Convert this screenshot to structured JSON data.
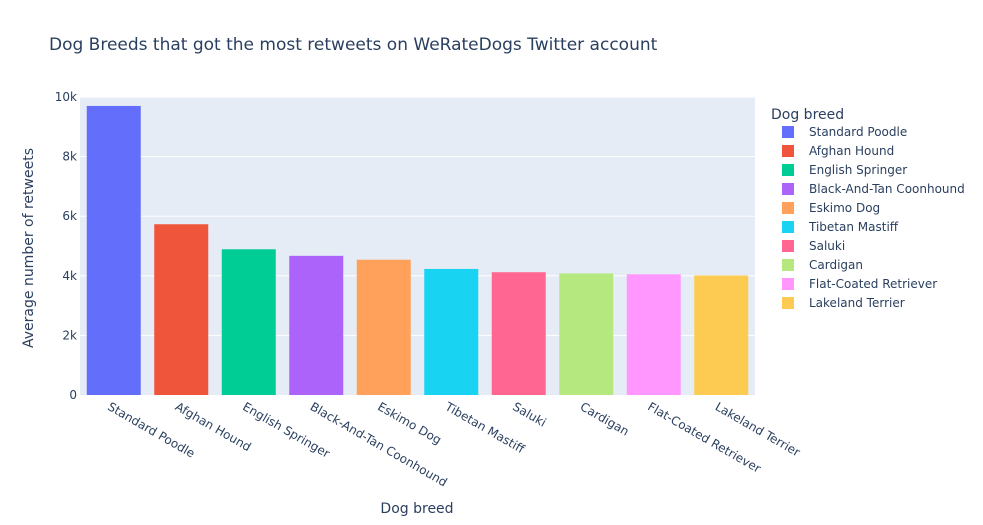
{
  "chart_data": {
    "type": "bar",
    "title": "Dog Breeds that got the most retweets on WeRateDogs Twitter account",
    "xlabel": "Dog breed",
    "ylabel": "Average number of retweets",
    "ylim": [
      0,
      10000
    ],
    "yticks": [
      0,
      2000,
      4000,
      6000,
      8000,
      10000
    ],
    "ytick_labels": [
      "0",
      "2k",
      "4k",
      "6k",
      "8k",
      "10k"
    ],
    "grid": true,
    "legend": {
      "title": "Dog breed",
      "position": "right"
    },
    "categories": [
      "Standard Poodle",
      "Afghan Hound",
      "English Springer",
      "Black-And-Tan Coonhound",
      "Eskimo Dog",
      "Tibetan Mastiff",
      "Saluki",
      "Cardigan",
      "Flat-Coated Retriever",
      "Lakeland Terrier"
    ],
    "values": [
      9700,
      5730,
      4890,
      4670,
      4540,
      4230,
      4120,
      4080,
      4050,
      4010
    ],
    "series": [
      {
        "name": "Standard Poodle",
        "color": "#636efa"
      },
      {
        "name": "Afghan Hound",
        "color": "#ef553b"
      },
      {
        "name": "English Springer",
        "color": "#00cc96"
      },
      {
        "name": "Black-And-Tan Coonhound",
        "color": "#ab63fa"
      },
      {
        "name": "Eskimo Dog",
        "color": "#ffa15a"
      },
      {
        "name": "Tibetan Mastiff",
        "color": "#19d3f3"
      },
      {
        "name": "Saluki",
        "color": "#ff6692"
      },
      {
        "name": "Cardigan",
        "color": "#b6e880"
      },
      {
        "name": "Flat-Coated Retriever",
        "color": "#ff97ff"
      },
      {
        "name": "Lakeland Terrier",
        "color": "#fecb52"
      }
    ],
    "plot_bg": "#e5ecf6"
  }
}
